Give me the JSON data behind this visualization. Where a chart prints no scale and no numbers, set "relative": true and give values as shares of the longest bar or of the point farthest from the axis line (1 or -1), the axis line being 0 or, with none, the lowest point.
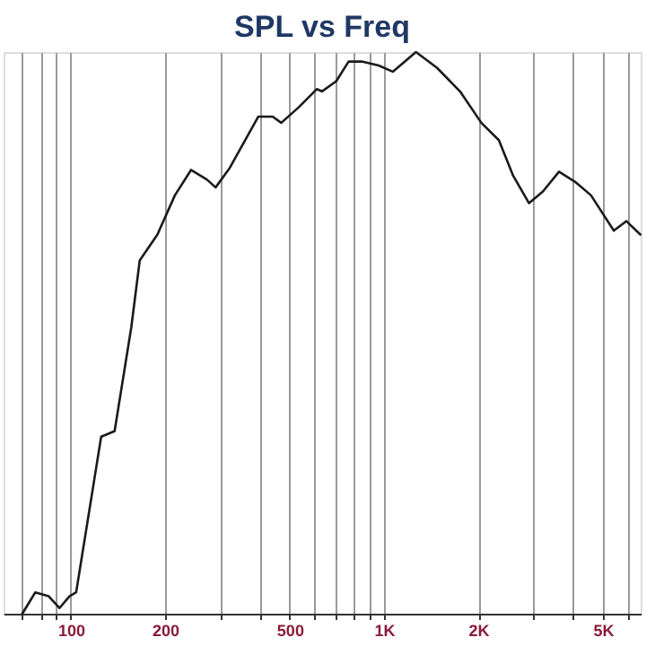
{
  "chart_data": {
    "type": "line",
    "title": "SPL vs Freq",
    "relative": true,
    "log": "x",
    "grid": "x",
    "marker": "none",
    "line_style": "solid",
    "x": [
      70,
      77,
      85,
      92,
      99,
      104,
      125,
      138,
      156,
      166,
      189,
      215,
      242,
      272,
      290,
      322,
      397,
      441,
      470,
      535,
      610,
      634,
      704,
      771,
      855,
      962,
      1067,
      1265,
      1476,
      1749,
      2046,
      2328,
      2584,
      2904,
      3221,
      3622,
      4074,
      4581,
      5420,
      5940,
      6590
    ],
    "series": [
      {
        "color": "#1a1a1a",
        "values": [
          0,
          0.038,
          0.031,
          0.01,
          0.031,
          0.038,
          0.315,
          0.325,
          0.51,
          0.629,
          0.675,
          0.745,
          0.79,
          0.773,
          0.759,
          0.794,
          0.885,
          0.885,
          0.874,
          0.902,
          0.934,
          0.93,
          0.948,
          0.983,
          0.983,
          0.976,
          0.965,
          1,
          0.972,
          0.93,
          0.874,
          0.843,
          0.78,
          0.731,
          0.752,
          0.787,
          0.769,
          0.745,
          0.682,
          0.699,
          0.675
        ]
      }
    ],
    "xlim": [
      61,
      6600
    ],
    "xticks": [
      {
        "value": 70,
        "label": null
      },
      {
        "value": 80,
        "label": null
      },
      {
        "value": 90,
        "label": null
      },
      100,
      200,
      {
        "value": 300,
        "label": null
      },
      {
        "value": 400,
        "label": null
      },
      500,
      {
        "value": 600,
        "label": null
      },
      {
        "value": 700,
        "label": null
      },
      {
        "value": 800,
        "label": null
      },
      {
        "value": 900,
        "label": null
      },
      {
        "value": 1000,
        "label": "1K"
      },
      {
        "value": 2000,
        "label": "2K"
      },
      {
        "value": 3000,
        "label": null
      },
      {
        "value": 4000,
        "label": null
      },
      {
        "value": 5000,
        "label": "5K"
      },
      {
        "value": 6000,
        "label": null
      }
    ]
  }
}
